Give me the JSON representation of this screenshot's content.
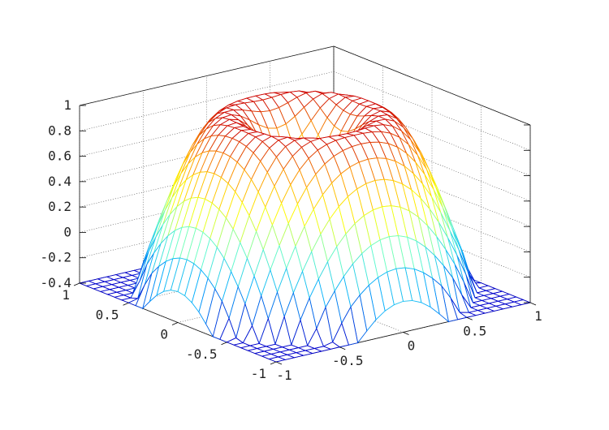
{
  "chart_data": {
    "type": "surface",
    "title": "",
    "xlabel": "",
    "ylabel": "",
    "zlabel": "",
    "grid": true,
    "colormap": [
      "#0000cc",
      "#00aaff",
      "#66ffcc",
      "#ffff00",
      "#ff9900",
      "#cc0000"
    ],
    "z_function": "sin(pi*r) for r=sqrt(x^2+y^2) <= 1; sin(pi*(r-1))*0.5-0.4 style drop at corners",
    "xlim": [
      -1,
      1
    ],
    "ylim": [
      -1,
      1
    ],
    "zlim": [
      -0.4,
      1
    ],
    "grid_n": 29,
    "x_ticks": [
      "-1",
      "-0.5",
      "0",
      "0.5",
      "1"
    ],
    "y_ticks": [
      "-1",
      "-0.5",
      "0",
      "0.5",
      "1"
    ],
    "z_ticks": [
      "-0.4",
      "-0.2",
      "0",
      "0.2",
      "0.4",
      "0.6",
      "0.8",
      "1"
    ]
  }
}
